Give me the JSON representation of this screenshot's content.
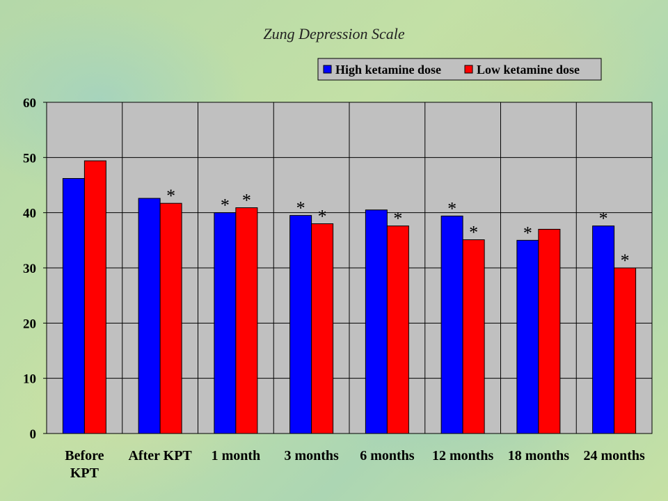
{
  "chart_data": {
    "type": "bar",
    "title": "Zung Depression Scale",
    "categories": [
      "Before KPT",
      "After KPT",
      "1 month",
      "3 months",
      "6 months",
      "12 months",
      "18 months",
      "24 months"
    ],
    "category_lines": [
      [
        "Before",
        "KPT"
      ],
      [
        "After KPT"
      ],
      [
        "1 month"
      ],
      [
        "3 months"
      ],
      [
        "6 months"
      ],
      [
        "12 months"
      ],
      [
        "18 months"
      ],
      [
        "24 months"
      ]
    ],
    "series": [
      {
        "name": "High ketamine dose",
        "color": "#0000ff",
        "values": [
          46.2,
          42.6,
          40,
          39.5,
          40.5,
          39.4,
          35,
          37.6
        ],
        "significant": [
          false,
          false,
          true,
          true,
          false,
          true,
          true,
          true
        ]
      },
      {
        "name": "Low ketamine dose",
        "color": "#ff0000",
        "values": [
          49.4,
          41.7,
          40.9,
          38,
          37.6,
          35.1,
          37,
          30
        ],
        "significant": [
          false,
          true,
          true,
          true,
          true,
          true,
          false,
          true
        ]
      }
    ],
    "significance_marker": "*",
    "ylim": [
      0,
      60
    ],
    "yticks": [
      0,
      10,
      20,
      30,
      40,
      50,
      60
    ],
    "xlabel": "",
    "ylabel": "",
    "grid": true,
    "legend_position": "top-right",
    "plot_background": "#c0c0c0"
  }
}
